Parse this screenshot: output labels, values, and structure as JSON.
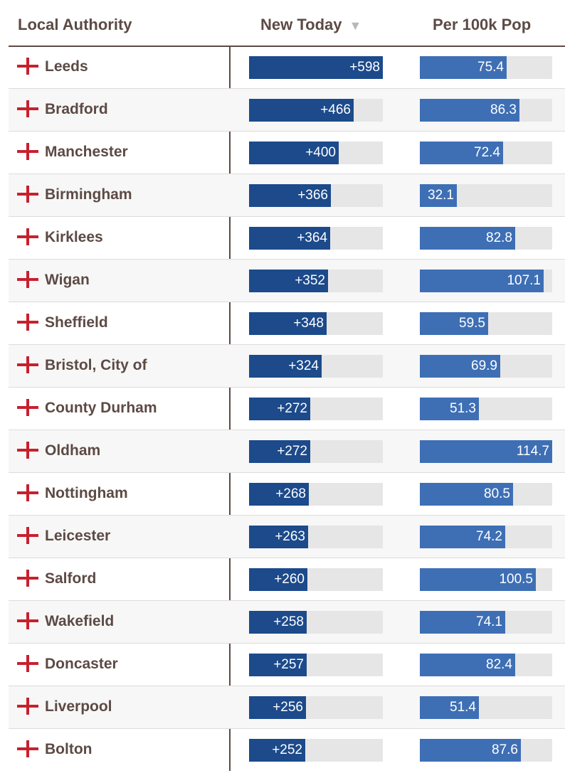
{
  "chart_data": {
    "type": "table",
    "columns": [
      "Local Authority",
      "New Today",
      "Per 100k Pop"
    ],
    "sort_indicator": "▼",
    "new_today_max": 598,
    "per_100k_max": 114.7,
    "rows": [
      {
        "name": "Leeds",
        "new_today": 598,
        "new_today_label": "+598",
        "per_100k": 75.4,
        "per_100k_label": "75.4"
      },
      {
        "name": "Bradford",
        "new_today": 466,
        "new_today_label": "+466",
        "per_100k": 86.3,
        "per_100k_label": "86.3"
      },
      {
        "name": "Manchester",
        "new_today": 400,
        "new_today_label": "+400",
        "per_100k": 72.4,
        "per_100k_label": "72.4"
      },
      {
        "name": "Birmingham",
        "new_today": 366,
        "new_today_label": "+366",
        "per_100k": 32.1,
        "per_100k_label": "32.1"
      },
      {
        "name": "Kirklees",
        "new_today": 364,
        "new_today_label": "+364",
        "per_100k": 82.8,
        "per_100k_label": "82.8"
      },
      {
        "name": "Wigan",
        "new_today": 352,
        "new_today_label": "+352",
        "per_100k": 107.1,
        "per_100k_label": "107.1"
      },
      {
        "name": "Sheffield",
        "new_today": 348,
        "new_today_label": "+348",
        "per_100k": 59.5,
        "per_100k_label": "59.5"
      },
      {
        "name": "Bristol, City of",
        "new_today": 324,
        "new_today_label": "+324",
        "per_100k": 69.9,
        "per_100k_label": "69.9"
      },
      {
        "name": "County Durham",
        "new_today": 272,
        "new_today_label": "+272",
        "per_100k": 51.3,
        "per_100k_label": "51.3"
      },
      {
        "name": "Oldham",
        "new_today": 272,
        "new_today_label": "+272",
        "per_100k": 114.7,
        "per_100k_label": "114.7"
      },
      {
        "name": "Nottingham",
        "new_today": 268,
        "new_today_label": "+268",
        "per_100k": 80.5,
        "per_100k_label": "80.5"
      },
      {
        "name": "Leicester",
        "new_today": 263,
        "new_today_label": "+263",
        "per_100k": 74.2,
        "per_100k_label": "74.2"
      },
      {
        "name": "Salford",
        "new_today": 260,
        "new_today_label": "+260",
        "per_100k": 100.5,
        "per_100k_label": "100.5"
      },
      {
        "name": "Wakefield",
        "new_today": 258,
        "new_today_label": "+258",
        "per_100k": 74.1,
        "per_100k_label": "74.1"
      },
      {
        "name": "Doncaster",
        "new_today": 257,
        "new_today_label": "+257",
        "per_100k": 82.4,
        "per_100k_label": "82.4"
      },
      {
        "name": "Liverpool",
        "new_today": 256,
        "new_today_label": "+256",
        "per_100k": 51.4,
        "per_100k_label": "51.4"
      },
      {
        "name": "Bolton",
        "new_today": 252,
        "new_today_label": "+252",
        "per_100k": 87.6,
        "per_100k_label": "87.6"
      }
    ]
  },
  "colors": {
    "header_text": "#5c4a44",
    "new_bar": "#1c4a8b",
    "per_bar": "#3e6fb5",
    "track": "#e6e6e6",
    "flag_red": "#c7202e"
  },
  "icons": {
    "row_icon": "england-flag-icon",
    "sort_icon": "sort-descending-icon"
  }
}
